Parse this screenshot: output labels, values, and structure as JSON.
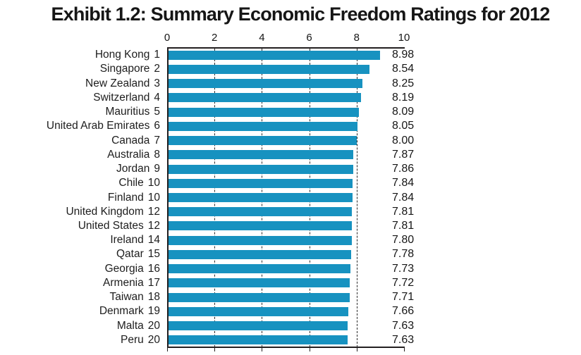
{
  "title": "Exhibit 1.2: Summary Economic Freedom Ratings for 2012",
  "chart_data": {
    "type": "bar",
    "orientation": "horizontal",
    "title": "Exhibit 1.2: Summary Economic Freedom Ratings for 2012",
    "xlabel": "",
    "ylabel": "",
    "xlim": [
      0,
      10
    ],
    "x_ticks": [
      0,
      2,
      4,
      6,
      8,
      10
    ],
    "gridline_ticks": [
      2,
      4,
      6,
      8
    ],
    "grid_style": "dashed",
    "legend": "none",
    "bar_color": "#1792C0",
    "axis_color": "#231F20",
    "text_color": "#161616",
    "value_decimals": 2,
    "rows": [
      {
        "country": "Hong Kong",
        "rank": 1,
        "value": 8.98
      },
      {
        "country": "Singapore",
        "rank": 2,
        "value": 8.54
      },
      {
        "country": "New Zealand",
        "rank": 3,
        "value": 8.25
      },
      {
        "country": "Switzerland",
        "rank": 4,
        "value": 8.19
      },
      {
        "country": "Mauritius",
        "rank": 5,
        "value": 8.09
      },
      {
        "country": "United Arab Emirates",
        "rank": 6,
        "value": 8.05
      },
      {
        "country": "Canada",
        "rank": 7,
        "value": 8.0
      },
      {
        "country": "Australia",
        "rank": 8,
        "value": 7.87
      },
      {
        "country": "Jordan",
        "rank": 9,
        "value": 7.86
      },
      {
        "country": "Chile",
        "rank": 10,
        "value": 7.84
      },
      {
        "country": "Finland",
        "rank": 10,
        "value": 7.84
      },
      {
        "country": "United Kingdom",
        "rank": 12,
        "value": 7.81
      },
      {
        "country": "United States",
        "rank": 12,
        "value": 7.81
      },
      {
        "country": "Ireland",
        "rank": 14,
        "value": 7.8
      },
      {
        "country": "Qatar",
        "rank": 15,
        "value": 7.78
      },
      {
        "country": "Georgia",
        "rank": 16,
        "value": 7.73
      },
      {
        "country": "Armenia",
        "rank": 17,
        "value": 7.72
      },
      {
        "country": "Taiwan",
        "rank": 18,
        "value": 7.71
      },
      {
        "country": "Denmark",
        "rank": 19,
        "value": 7.66
      },
      {
        "country": "Malta",
        "rank": 20,
        "value": 7.63
      },
      {
        "country": "Peru",
        "rank": 20,
        "value": 7.63
      }
    ]
  }
}
